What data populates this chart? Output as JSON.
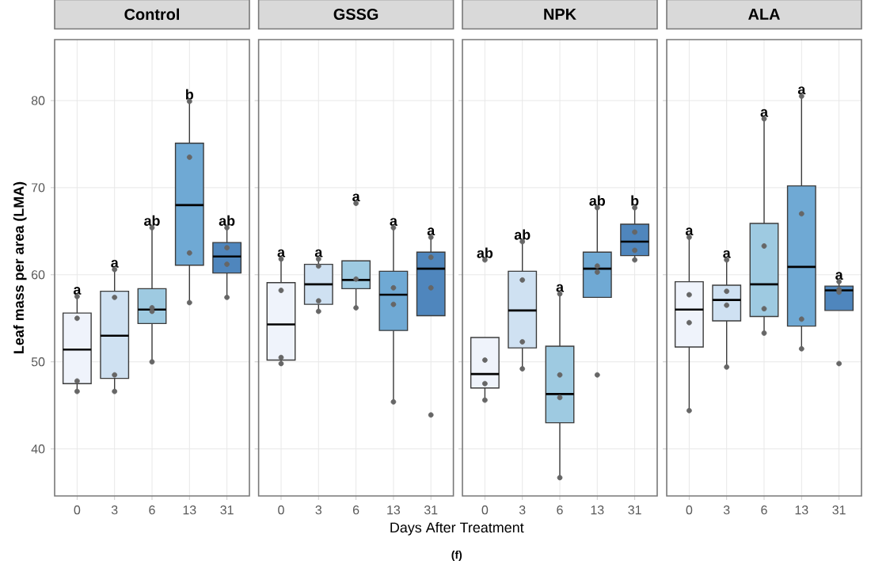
{
  "chart_data": [
    {
      "type": "box",
      "title": "Control",
      "ylabel": "Leaf mass per area (LMA)",
      "categories": [
        "0",
        "3",
        "6",
        "13",
        "31"
      ],
      "colors": [
        "#eff3fb",
        "#cfe1f2",
        "#9ecae1",
        "#6fa9d4",
        "#4f86bd"
      ],
      "boxes": [
        {
          "low": 46.6,
          "q1": 47.5,
          "median": 51.4,
          "q3": 55.6,
          "high": 57.5
        },
        {
          "low": 46.6,
          "q1": 48.1,
          "median": 53.0,
          "q3": 58.1,
          "high": 60.6
        },
        {
          "low": 50.0,
          "q1": 54.4,
          "median": 56.0,
          "q3": 58.4,
          "high": 65.4
        },
        {
          "low": 56.8,
          "q1": 61.1,
          "median": 68.0,
          "q3": 75.1,
          "high": 79.9
        },
        {
          "low": 57.4,
          "q1": 60.2,
          "median": 62.1,
          "q3": 63.7,
          "high": 65.4
        }
      ],
      "series": [
        {
          "type": "scatter",
          "color": "#666666",
          "x": [
            "0",
            "0",
            "0",
            "0",
            "3",
            "3",
            "3",
            "3",
            "6",
            "6",
            "6",
            "6",
            "13",
            "13",
            "13",
            "13",
            "31",
            "31",
            "31",
            "31"
          ],
          "values": [
            57.5,
            55.0,
            47.8,
            46.6,
            60.6,
            57.4,
            48.5,
            46.6,
            65.4,
            56.2,
            55.8,
            50.0,
            79.9,
            73.5,
            62.5,
            56.8,
            65.4,
            63.1,
            61.2,
            57.4
          ]
        }
      ],
      "annotations": [
        {
          "text": "a",
          "x": "0",
          "y": 57.5
        },
        {
          "text": "a",
          "x": "3",
          "y": 60.6
        },
        {
          "text": "ab",
          "x": "6",
          "y": 65.4
        },
        {
          "text": "b",
          "x": "13",
          "y": 79.9
        },
        {
          "text": "ab",
          "x": "31",
          "y": 65.4
        }
      ],
      "ylim": [
        34.6,
        87
      ],
      "yticks": [
        40,
        50,
        60,
        70,
        80
      ],
      "grid": true
    },
    {
      "type": "box",
      "title": "GSSG",
      "xlabel": "Days After Treatment",
      "categories": [
        "0",
        "3",
        "6",
        "13",
        "31"
      ],
      "colors": [
        "#eff3fb",
        "#cfe1f2",
        "#9ecae1",
        "#6fa9d4",
        "#4f86bd"
      ],
      "boxes": [
        {
          "low": 49.8,
          "q1": 50.2,
          "median": 54.3,
          "q3": 59.1,
          "high": 61.8
        },
        {
          "low": 55.8,
          "q1": 56.6,
          "median": 58.9,
          "q3": 61.2,
          "high": 61.8
        },
        {
          "low": 56.2,
          "q1": 58.4,
          "median": 59.4,
          "q3": 61.6,
          "high": 61.6
        },
        {
          "low": 45.4,
          "q1": 53.6,
          "median": 57.7,
          "q3": 60.4,
          "high": 65.4
        },
        {
          "low": 55.3,
          "q1": 55.3,
          "median": 60.7,
          "q3": 62.6,
          "high": 64.3
        }
      ],
      "series": [
        {
          "type": "scatter",
          "color": "#666666",
          "x": [
            "0",
            "0",
            "0",
            "0",
            "3",
            "3",
            "3",
            "3",
            "6",
            "6",
            "6",
            "13",
            "13",
            "13",
            "13",
            "31",
            "31",
            "31",
            "31"
          ],
          "values": [
            61.8,
            58.2,
            50.5,
            49.8,
            61.8,
            61.0,
            57.0,
            55.8,
            68.2,
            59.5,
            56.2,
            65.4,
            58.5,
            56.6,
            45.4,
            64.3,
            62.0,
            58.5,
            43.9
          ]
        }
      ],
      "annotations": [
        {
          "text": "a",
          "x": "0",
          "y": 61.8
        },
        {
          "text": "a",
          "x": "3",
          "y": 61.8
        },
        {
          "text": "a",
          "x": "6",
          "y": 68.2
        },
        {
          "text": "a",
          "x": "13",
          "y": 65.4
        },
        {
          "text": "a",
          "x": "31",
          "y": 64.3
        },
        "(f)"
      ],
      "ylim": [
        34.6,
        87
      ],
      "yticks": [
        40,
        50,
        60,
        70,
        80
      ],
      "grid": true,
      "tick_labels": "x"
    },
    {
      "type": "box",
      "title": "NPK",
      "categories": [
        "0",
        "3",
        "6",
        "13",
        "31"
      ],
      "colors": [
        "#eff3fb",
        "#cfe1f2",
        "#9ecae1",
        "#6fa9d4",
        "#4f86bd"
      ],
      "boxes": [
        {
          "low": 45.6,
          "q1": 47.0,
          "median": 48.6,
          "q3": 52.8,
          "high": 52.8
        },
        {
          "low": 49.2,
          "q1": 51.6,
          "median": 55.9,
          "q3": 60.4,
          "high": 63.8
        },
        {
          "low": 36.7,
          "q1": 43.0,
          "median": 46.3,
          "q3": 51.8,
          "high": 57.8
        },
        {
          "low": 57.4,
          "q1": 57.4,
          "median": 60.7,
          "q3": 62.6,
          "high": 67.7
        },
        {
          "low": 61.7,
          "q1": 62.2,
          "median": 63.8,
          "q3": 65.8,
          "high": 67.7
        }
      ],
      "series": [
        {
          "type": "scatter",
          "color": "#666666",
          "x": [
            "0",
            "0",
            "0",
            "0",
            "3",
            "3",
            "3",
            "3",
            "6",
            "6",
            "6",
            "6",
            "13",
            "13",
            "13",
            "13",
            "31",
            "31",
            "31",
            "31"
          ],
          "values": [
            61.7,
            50.2,
            47.5,
            45.6,
            63.8,
            59.4,
            52.3,
            49.2,
            57.8,
            48.5,
            45.9,
            36.7,
            67.7,
            61.0,
            60.3,
            48.5,
            67.7,
            64.9,
            62.8,
            61.7
          ]
        }
      ],
      "annotations": [
        {
          "text": "ab",
          "x": "0",
          "y": 61.7
        },
        {
          "text": "ab",
          "x": "3",
          "y": 63.8
        },
        {
          "text": "a",
          "x": "6",
          "y": 57.8
        },
        {
          "text": "ab",
          "x": "13",
          "y": 67.7
        },
        {
          "text": "b",
          "x": "31",
          "y": 67.7
        }
      ],
      "ylim": [
        34.6,
        87
      ],
      "yticks": [
        40,
        50,
        60,
        70,
        80
      ],
      "grid": true,
      "tick_labels": "x"
    },
    {
      "type": "box",
      "title": "ALA",
      "categories": [
        "0",
        "3",
        "6",
        "13",
        "31"
      ],
      "colors": [
        "#eff3fb",
        "#cfe1f2",
        "#9ecae1",
        "#6fa9d4",
        "#4f86bd"
      ],
      "boxes": [
        {
          "low": 44.4,
          "q1": 51.7,
          "median": 56.0,
          "q3": 59.2,
          "high": 64.3
        },
        {
          "low": 49.4,
          "q1": 54.7,
          "median": 57.1,
          "q3": 58.8,
          "high": 61.7
        },
        {
          "low": 53.3,
          "q1": 55.2,
          "median": 58.9,
          "q3": 65.9,
          "high": 77.9
        },
        {
          "low": 51.5,
          "q1": 54.1,
          "median": 60.9,
          "q3": 70.2,
          "high": 80.5
        },
        {
          "low": 55.9,
          "q1": 55.9,
          "median": 58.2,
          "q3": 58.7,
          "high": 59.2
        }
      ],
      "series": [
        {
          "type": "scatter",
          "color": "#666666",
          "x": [
            "0",
            "0",
            "0",
            "0",
            "3",
            "3",
            "3",
            "3",
            "6",
            "6",
            "6",
            "6",
            "13",
            "13",
            "13",
            "13",
            "31",
            "31",
            "31",
            "31"
          ],
          "values": [
            64.3,
            57.7,
            54.5,
            44.4,
            61.7,
            58.1,
            56.5,
            49.4,
            77.9,
            63.3,
            56.1,
            53.3,
            80.5,
            67.0,
            54.9,
            51.5,
            59.2,
            58.3,
            58.0,
            49.8
          ]
        }
      ],
      "annotations": [
        {
          "text": "a",
          "x": "0",
          "y": 64.3
        },
        {
          "text": "a",
          "x": "3",
          "y": 61.7
        },
        {
          "text": "a",
          "x": "6",
          "y": 77.9
        },
        {
          "text": "a",
          "x": "13",
          "y": 80.5
        },
        {
          "text": "a",
          "x": "31",
          "y": 59.2
        }
      ],
      "ylim": [
        34.6,
        87
      ],
      "yticks": [
        40,
        50,
        60,
        70,
        80
      ],
      "grid": true,
      "tick_labels": "x"
    }
  ]
}
